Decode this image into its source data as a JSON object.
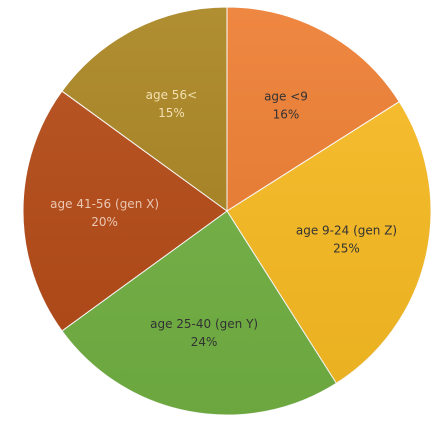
{
  "chart_data": {
    "type": "pie",
    "slices": [
      {
        "label": "age <9",
        "value": 16,
        "value_label": "16%",
        "color": "#ed7d31",
        "text_color": "#333333"
      },
      {
        "label": "age 9-24  (gen Z)",
        "value": 25,
        "value_label": "25%",
        "color": "#f8bb22",
        "text_color": "#333333"
      },
      {
        "label": "age 25-40  (gen Y)",
        "value": 24,
        "value_label": "24%",
        "color": "#72b143",
        "text_color": "#333333"
      },
      {
        "label": "age 41-56  (gen X)",
        "value": 20,
        "value_label": "20%",
        "color": "#b54a16",
        "text_color": "#e9c7b3"
      },
      {
        "label": "age 56<",
        "value": 15,
        "value_label": "15%",
        "color": "#a98420",
        "text_color": "#f3dfb2"
      }
    ],
    "start": "12 o'clock",
    "direction": "clockwise",
    "legend": "none",
    "title": ""
  }
}
